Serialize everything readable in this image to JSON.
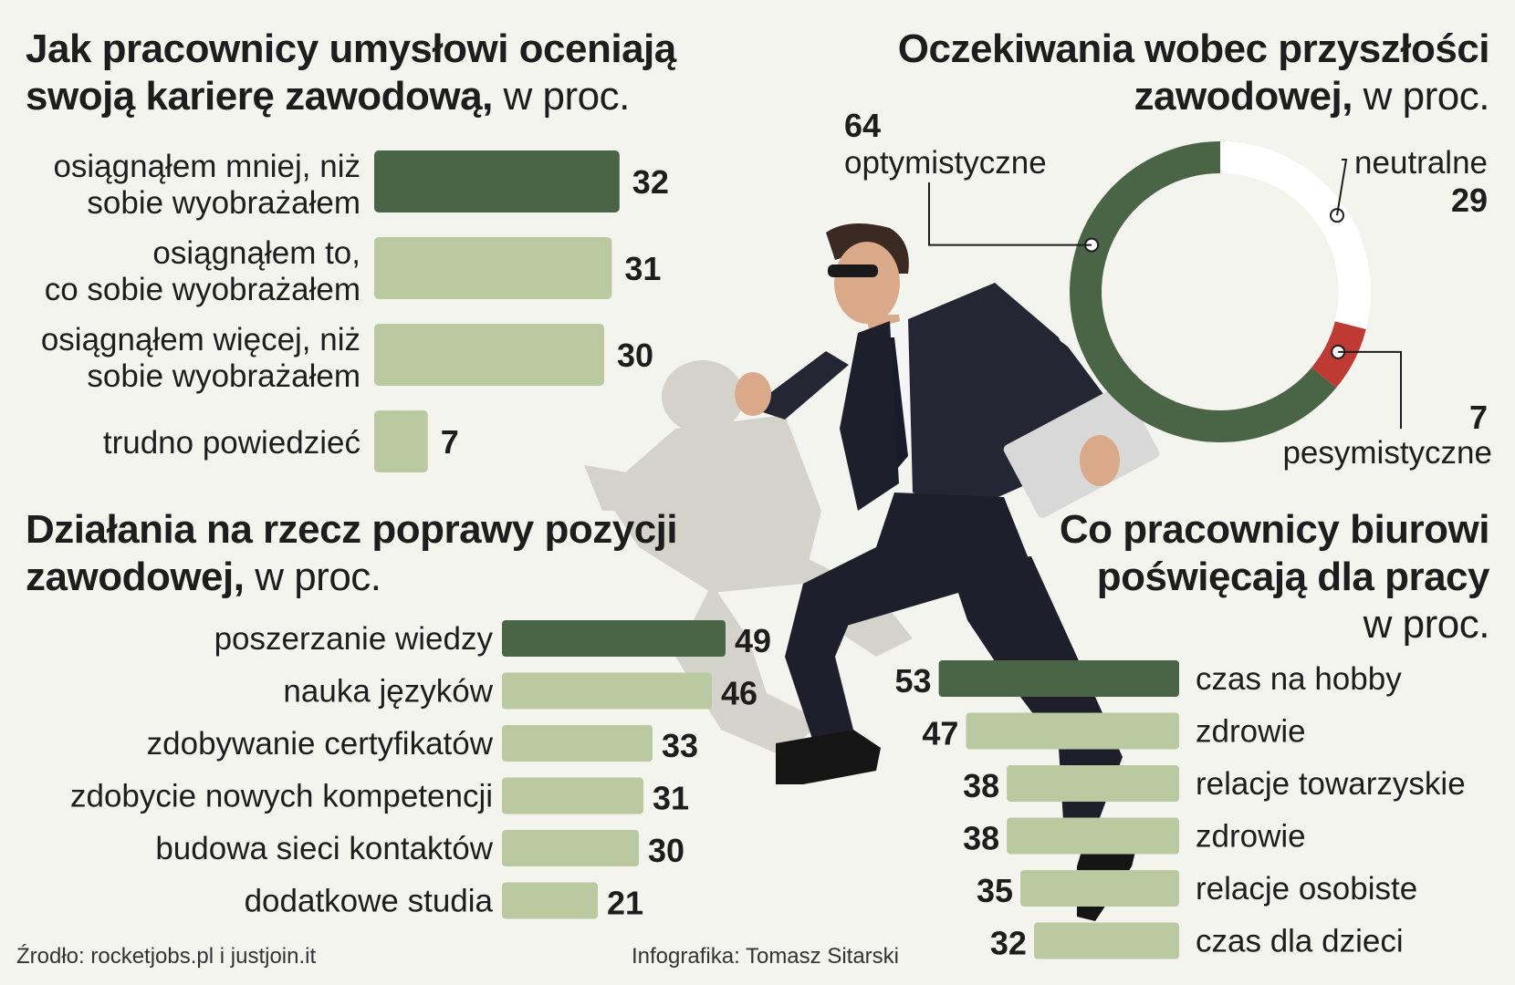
{
  "colors": {
    "dark_green": "#4a6446",
    "light_green": "#bac9a0",
    "red": "#c03a34",
    "white": "#ffffff",
    "background": "#f4f4ef"
  },
  "illustration": {
    "icon": "running-businessman-icon",
    "shadow_icon": "runner-shadow-icon"
  },
  "chart1": {
    "title_bold_line1": "Jak pracownicy umysłowi oceniają",
    "title_bold_line2": "swoją karierę zawodową,",
    "title_unit": " w proc."
  },
  "chart2": {
    "title_bold_line1": "Oczekiwania wobec przyszłości",
    "title_bold_line2": "zawodowej,",
    "title_unit": " w proc."
  },
  "chart3": {
    "title_bold_line1": "Działania na rzecz poprawy pozycji",
    "title_bold_line2": "zawodowej,",
    "title_unit": " w proc."
  },
  "chart4": {
    "title_bold_line1": "Co pracownicy biurowi",
    "title_bold_line2": "poświęcają dla pracy",
    "title_unit": "w proc."
  },
  "footer": {
    "source": "Źrodło: rocketjobs.pl i justjoin.it",
    "credit": "Infografika: Tomasz Sitarski"
  },
  "chart_data": [
    {
      "type": "bar",
      "orientation": "horizontal",
      "title": "Jak pracownicy umysłowi oceniają swoją karierę zawodową, w proc.",
      "categories": [
        [
          "osiągnąłem mniej, niż",
          "sobie wyobrażałem"
        ],
        [
          "osiągnąłem  to,",
          "co  sobie wyobrażałem"
        ],
        [
          "osiągnąłem więcej, niż",
          "sobie wyobrażałem"
        ],
        [
          "trudno powiedzieć"
        ]
      ],
      "values": [
        32,
        31,
        30,
        7
      ],
      "highlight_index": 0
    },
    {
      "type": "pie",
      "donut": true,
      "title": "Oczekiwania wobec przyszłości zawodowej, w proc.",
      "slices": [
        {
          "label": "neutralne",
          "value": 29,
          "color": "#ffffff"
        },
        {
          "label": "pesymistyczne",
          "value": 7,
          "color": "#c03a34"
        },
        {
          "label": "optymistyczne",
          "value": 64,
          "color": "#4a6446"
        }
      ]
    },
    {
      "type": "bar",
      "orientation": "horizontal",
      "title": "Działania na rzecz poprawy pozycji zawodowej, w proc.",
      "categories": [
        "poszerzanie wiedzy",
        "nauka języków",
        "zdobywanie certyfikatów",
        "zdobycie nowych kompetencji",
        "budowa sieci kontaktów",
        "dodatkowe studia"
      ],
      "values": [
        49,
        46,
        33,
        31,
        30,
        21
      ],
      "highlight_index": 0
    },
    {
      "type": "bar",
      "orientation": "horizontal",
      "title": "Co pracownicy biurowi poświęcają dla pracy w proc.",
      "categories": [
        "czas na hobby",
        "zdrowie",
        "relacje towarzyskie",
        "zdrowie",
        "relacje osobiste",
        "czas dla dzieci"
      ],
      "values": [
        53,
        47,
        38,
        38,
        35,
        32
      ],
      "highlight_index": 0
    }
  ]
}
